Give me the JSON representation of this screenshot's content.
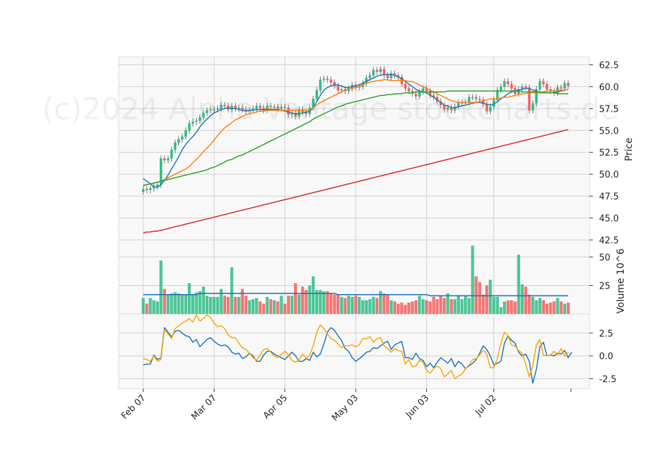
{
  "watermark": "(c)2024 Alpha Vantage stockcharts.de",
  "chart_data": {
    "type": "candlestick",
    "grid": true,
    "x_tick_labels": [
      "Feb 07",
      "Mar 07",
      "Apr 05",
      "May 03",
      "Jun 03",
      "Jul 02"
    ],
    "x_tick_index": [
      0,
      20,
      40,
      60,
      80,
      99
    ],
    "n_sessions": 121,
    "price_panel": {
      "ylabel": "Price",
      "ylim": [
        42.5,
        63.4
      ],
      "yticks": [
        42.5,
        45.0,
        47.5,
        50.0,
        52.5,
        55.0,
        57.5,
        60.0,
        62.5
      ],
      "ytick_labels": [
        "42.5",
        "45.0",
        "47.5",
        "50.0",
        "52.5",
        "55.0",
        "57.5",
        "60.0",
        "62.5"
      ],
      "close": [
        48.3,
        48.2,
        48.4,
        48.6,
        48.8,
        51.8,
        51.6,
        51.8,
        52.8,
        53.6,
        54.0,
        54.3,
        55.0,
        55.8,
        56.0,
        56.1,
        56.5,
        57.0,
        57.3,
        57.4,
        57.4,
        57.5,
        57.9,
        57.8,
        57.4,
        57.8,
        57.5,
        57.6,
        57.4,
        57.2,
        57.3,
        57.5,
        57.8,
        57.6,
        57.3,
        57.8,
        57.7,
        57.7,
        57.5,
        57.7,
        57.6,
        56.8,
        57.0,
        56.6,
        57.4,
        57.1,
        56.9,
        57.6,
        58.6,
        59.6,
        60.8,
        60.9,
        60.8,
        60.5,
        60.1,
        59.6,
        59.7,
        59.5,
        59.8,
        60.2,
        59.9,
        60.0,
        60.4,
        61.0,
        61.3,
        61.9,
        61.7,
        62.0,
        61.3,
        61.0,
        61.5,
        61.3,
        61.1,
        60.3,
        59.8,
        59.5,
        59.2,
        58.9,
        59.4,
        59.8,
        59.5,
        59.0,
        58.8,
        58.3,
        57.9,
        57.4,
        57.6,
        57.3,
        57.7,
        58.2,
        58.2,
        58.2,
        58.8,
        58.8,
        58.6,
        58.5,
        58.0,
        57.2,
        57.7,
        58.5,
        59.6,
        60.0,
        60.6,
        60.3,
        59.8,
        59.2,
        59.7,
        60.0,
        59.9,
        57.3,
        58.1,
        59.7,
        60.6,
        60.3,
        59.7,
        59.5,
        59.3,
        59.9,
        59.8,
        60.4,
        60.1
      ],
      "ma_fast": [
        49.5,
        49.2,
        48.9,
        48.6,
        48.5,
        48.8,
        49.3,
        49.9,
        50.6,
        51.3,
        52.0,
        52.8,
        53.4,
        53.9,
        54.3,
        54.8,
        55.4,
        55.9,
        56.3,
        56.7,
        57.0,
        57.2,
        57.4,
        57.5,
        57.6,
        57.5,
        57.5,
        57.4,
        57.3,
        57.2,
        57.3,
        57.3,
        57.4,
        57.4,
        57.4,
        57.4,
        57.4,
        57.4,
        57.4,
        57.3,
        57.2,
        57.1,
        57.0,
        56.9,
        56.9,
        57.0,
        57.1,
        57.2,
        57.6,
        58.3,
        59.0,
        59.6,
        59.9,
        60.1,
        60.2,
        60.2,
        60.1,
        59.9,
        59.9,
        60.0,
        60.1,
        60.2,
        60.4,
        60.6,
        60.8,
        61.0,
        61.2,
        61.3,
        61.4,
        61.4,
        61.4,
        61.3,
        61.1,
        60.9,
        60.6,
        60.3,
        60.0,
        59.7,
        59.5,
        59.4,
        59.3,
        59.0,
        58.8,
        58.5,
        58.2,
        57.9,
        57.8,
        57.6,
        57.6,
        57.7,
        57.8,
        57.9,
        58.0,
        58.1,
        58.2,
        58.2,
        58.1,
        58.0,
        57.9,
        58.0,
        58.3,
        58.6,
        58.9,
        59.2,
        59.4,
        59.5,
        59.6,
        59.7,
        59.8,
        59.8,
        59.6,
        59.5,
        59.3,
        59.3,
        59.3,
        59.3,
        59.3,
        59.4,
        59.5,
        59.6,
        59.7
      ],
      "ma_mid": [
        48.8,
        48.8,
        48.9,
        49.0,
        49.1,
        49.2,
        49.4,
        49.6,
        49.8,
        50.0,
        50.2,
        50.4,
        50.6,
        50.9,
        51.3,
        51.7,
        52.1,
        52.6,
        53.0,
        53.4,
        53.9,
        54.4,
        54.9,
        55.3,
        55.6,
        55.9,
        56.2,
        56.4,
        56.6,
        56.8,
        56.9,
        57.0,
        57.1,
        57.2,
        57.2,
        57.3,
        57.3,
        57.3,
        57.3,
        57.3,
        57.3,
        57.3,
        57.3,
        57.3,
        57.3,
        57.3,
        57.3,
        57.4,
        57.6,
        57.9,
        58.2,
        58.4,
        58.6,
        58.8,
        59.0,
        59.2,
        59.4,
        59.6,
        59.7,
        59.8,
        59.9,
        60.0,
        60.2,
        60.4,
        60.5,
        60.6,
        60.7,
        60.7,
        60.8,
        60.8,
        60.7,
        60.7,
        60.7,
        60.7,
        60.7,
        60.6,
        60.6,
        60.4,
        60.2,
        60.0,
        59.8,
        59.6,
        59.4,
        59.2,
        59.0,
        58.8,
        58.6,
        58.4,
        58.3,
        58.2,
        58.2,
        58.2,
        58.2,
        58.2,
        58.2,
        58.3,
        58.4,
        58.5,
        58.6,
        58.6,
        58.6,
        58.7,
        58.8,
        58.8,
        58.9,
        59.0,
        59.1,
        59.2,
        59.2,
        59.3,
        59.3,
        59.3,
        59.4,
        59.4,
        59.5,
        59.5,
        59.5,
        59.6,
        59.6,
        59.6,
        59.7
      ],
      "ma_slow": [
        48.7,
        48.8,
        48.9,
        49.0,
        49.1,
        49.2,
        49.3,
        49.4,
        49.5,
        49.6,
        49.7,
        49.8,
        49.9,
        50.0,
        50.1,
        50.2,
        50.3,
        50.4,
        50.5,
        50.7,
        50.8,
        51.0,
        51.2,
        51.4,
        51.6,
        51.7,
        51.9,
        52.1,
        52.2,
        52.4,
        52.6,
        52.8,
        53.0,
        53.2,
        53.4,
        53.6,
        53.8,
        54.0,
        54.2,
        54.4,
        54.6,
        54.8,
        55.0,
        55.2,
        55.4,
        55.6,
        55.8,
        56.0,
        56.3,
        56.5,
        56.7,
        56.9,
        57.1,
        57.3,
        57.5,
        57.7,
        57.8,
        58.0,
        58.1,
        58.2,
        58.3,
        58.4,
        58.5,
        58.6,
        58.7,
        58.8,
        58.9,
        59.0,
        59.0,
        59.1,
        59.1,
        59.2,
        59.2,
        59.2,
        59.3,
        59.3,
        59.3,
        59.4,
        59.4,
        59.4,
        59.4,
        59.4,
        59.4,
        59.4,
        59.4,
        59.4,
        59.5,
        59.5,
        59.5,
        59.5,
        59.5,
        59.5,
        59.5,
        59.5,
        59.5,
        59.5,
        59.5,
        59.5,
        59.5,
        59.5,
        59.5,
        59.5,
        59.5,
        59.5,
        59.5,
        59.5,
        59.5,
        59.4,
        59.4,
        59.4,
        59.4,
        59.4,
        59.3,
        59.3,
        59.3,
        59.3,
        59.3,
        59.2,
        59.2,
        59.2,
        59.2
      ],
      "ma_long": [
        43.3,
        43.4,
        43.4,
        43.5,
        43.5,
        43.6,
        43.7,
        43.8,
        43.9,
        44.0,
        44.1,
        44.2,
        44.3,
        44.4,
        44.5,
        44.6,
        44.7,
        44.8,
        44.9,
        45.0,
        45.1,
        45.2,
        45.3,
        45.4,
        45.5,
        45.6,
        45.7,
        45.8,
        45.9,
        46.0,
        46.1,
        46.2,
        46.3,
        46.4,
        46.5,
        46.6,
        46.7,
        46.8,
        46.9,
        47.0,
        47.1,
        47.2,
        47.3,
        47.4,
        47.5,
        47.6,
        47.7,
        47.8,
        47.9,
        48.0,
        48.1,
        48.2,
        48.3,
        48.4,
        48.5,
        48.6,
        48.7,
        48.8,
        48.9,
        49.0,
        49.1,
        49.2,
        49.3,
        49.4,
        49.5,
        49.6,
        49.7,
        49.8,
        49.9,
        50.0,
        50.1,
        50.2,
        50.3,
        50.4,
        50.5,
        50.6,
        50.7,
        50.8,
        50.9,
        51.0,
        51.1,
        51.2,
        51.3,
        51.4,
        51.5,
        51.6,
        51.7,
        51.8,
        51.9,
        52.0,
        52.1,
        52.2,
        52.3,
        52.4,
        52.5,
        52.6,
        52.7,
        52.8,
        52.9,
        53.0,
        53.1,
        53.2,
        53.3,
        53.4,
        53.5,
        53.6,
        53.7,
        53.8,
        53.9,
        54.0,
        54.1,
        54.2,
        54.3,
        54.4,
        54.5,
        54.6,
        54.7,
        54.8,
        54.9,
        55.0,
        55.1
      ],
      "colors": {
        "up": "#2ebd85",
        "down": "#f65e5e",
        "ma_fast": "#1f77b4",
        "ma_mid": "#ff7f0e",
        "ma_slow": "#2ca02c",
        "ma_long": "#d62728"
      }
    },
    "volume_panel": {
      "ylabel": "Volume  10^6",
      "ylim": [
        0,
        65
      ],
      "yticks": [
        25,
        50
      ],
      "ytick_labels": [
        "25",
        "50"
      ],
      "values": [
        14,
        9,
        14,
        12,
        11,
        47,
        22,
        17,
        18,
        19,
        18,
        17,
        17,
        27,
        17,
        19,
        20,
        24,
        16,
        15,
        15,
        15,
        22,
        16,
        15,
        41,
        15,
        15,
        22,
        16,
        12,
        13,
        14,
        11,
        9,
        15,
        13,
        12,
        11,
        16,
        9,
        16,
        16,
        27,
        17,
        24,
        21,
        25,
        33,
        21,
        21,
        20,
        20,
        18,
        17,
        17,
        15,
        14,
        16,
        15,
        16,
        15,
        12,
        12,
        13,
        15,
        14,
        20,
        18,
        17,
        12,
        11,
        9,
        10,
        8,
        10,
        11,
        12,
        16,
        13,
        12,
        11,
        15,
        13,
        16,
        14,
        18,
        13,
        13,
        16,
        13,
        16,
        14,
        60,
        33,
        28,
        17,
        25,
        30,
        15,
        15,
        6,
        11,
        12,
        12,
        11,
        52,
        26,
        24,
        17,
        15,
        12,
        14,
        12,
        9,
        10,
        11,
        14,
        11,
        9,
        10
      ],
      "ma": [
        17,
        17,
        17,
        17,
        17,
        17,
        17,
        17,
        17,
        17,
        17,
        17,
        17,
        17,
        17,
        17,
        18,
        18,
        18,
        18,
        18,
        18,
        18,
        18,
        18,
        18,
        18,
        18,
        18,
        18,
        18,
        18,
        18,
        18,
        18,
        18,
        18,
        18,
        18,
        18,
        18,
        18,
        18,
        18,
        18,
        18,
        18,
        18,
        18,
        18,
        18,
        18,
        18,
        18,
        18,
        17,
        17,
        17,
        17,
        17,
        17,
        17,
        17,
        17,
        17,
        17,
        17,
        17,
        17,
        17,
        17,
        17,
        17,
        17,
        17,
        17,
        17,
        17,
        17,
        17,
        17,
        16,
        16,
        16,
        16,
        16,
        16,
        16,
        16,
        16,
        16,
        16,
        16,
        16,
        16,
        16,
        16,
        16,
        16,
        16,
        16,
        16,
        16,
        16,
        16,
        16,
        16,
        16,
        16,
        16,
        16,
        16,
        16,
        16,
        16,
        16,
        16,
        16,
        16,
        16,
        16
      ],
      "colors": {
        "ma": "#1f77b4"
      }
    },
    "oscillator_panel": {
      "ylim": [
        -3.6,
        4.6
      ],
      "yticks": [
        -2.5,
        0.0,
        2.5
      ],
      "ytick_labels": [
        "-2.5",
        "0.0",
        "2.5"
      ],
      "series": [
        {
          "values": [
            -1.0,
            -0.9,
            -0.9,
            0.1,
            -0.4,
            -0.2,
            3.1,
            2.6,
            2.1,
            2.7,
            2.8,
            2.5,
            2.2,
            2.1,
            1.5,
            1.8,
            1.0,
            1.4,
            1.8,
            2.0,
            1.6,
            1.3,
            1.1,
            1.2,
            1.0,
            0.4,
            0.2,
            0.3,
            -0.3,
            -0.1,
            0.3,
            0.0,
            -0.6,
            -0.6,
            0.1,
            0.5,
            0.5,
            0.2,
            0.0,
            -0.2,
            -0.4,
            0.0,
            0.4,
            0.0,
            -0.6,
            -0.6,
            -0.3,
            -0.5,
            0.4,
            -0.1,
            0.2,
            1.3,
            2.6,
            3.1,
            2.8,
            2.2,
            1.7,
            0.8,
            0.5,
            -0.2,
            -0.6,
            -0.3,
            0.0,
            0.4,
            0.5,
            0.9,
            0.8,
            1.1,
            1.4,
            1.6,
            0.7,
            1.2,
            1.4,
            1.6,
            -0.2,
            -0.2,
            -0.4,
            0.3,
            -0.3,
            -0.5,
            -1.2,
            -0.8,
            -1.3,
            -0.7,
            -0.2,
            -0.5,
            -0.8,
            -0.3,
            -1.2,
            -0.6,
            -0.9,
            -1.4,
            -1.1,
            -0.8,
            -0.4,
            0.3,
            1.1,
            0.7,
            0.0,
            -1.0,
            -0.8,
            -0.6,
            1.4,
            2.2,
            1.7,
            1.4,
            0.4,
            0.0,
            0.2,
            -0.6,
            -3.0,
            -1.5,
            1.0,
            1.5,
            0.0,
            0.1,
            0.0,
            0.3,
            0.2,
            0.6,
            -0.2,
            0.4
          ],
          "color": "#1f77b4"
        },
        {
          "values": [
            -0.3,
            -0.4,
            -0.6,
            0.0,
            -0.6,
            -0.4,
            2.9,
            2.4,
            1.9,
            3.0,
            3.3,
            3.6,
            3.8,
            4.1,
            3.7,
            4.5,
            3.8,
            4.1,
            4.5,
            4.2,
            3.6,
            3.2,
            3.3,
            3.0,
            2.3,
            2.0,
            2.0,
            1.4,
            0.9,
            0.7,
            0.3,
            -0.2,
            -0.5,
            0.1,
            0.7,
            0.8,
            0.4,
            0.0,
            -0.2,
            0.2,
            0.5,
            0.1,
            -0.5,
            -0.7,
            -0.4,
            0.2,
            -0.3,
            0.1,
            1.1,
            2.6,
            3.4,
            3.0,
            2.4,
            1.9,
            1.7,
            1.3,
            0.9,
            1.1,
            1.1,
            1.2,
            1.0,
            1.2,
            1.9,
            1.9,
            2.1,
            1.5,
            1.9,
            2.0,
            1.1,
            0.8,
            0.4,
            0.8,
            0.6,
            0.5,
            -0.9,
            -0.4,
            -1.2,
            -1.1,
            -0.5,
            -0.7,
            -1.6,
            -1.9,
            -1.4,
            -1.1,
            -1.4,
            -2.3,
            -2.0,
            -1.6,
            -2.5,
            -2.2,
            -2.0,
            -1.4,
            -1.0,
            -0.4,
            -0.3,
            0.1,
            0.6,
            0.2,
            -1.3,
            -1.3,
            -0.3,
            1.4,
            2.6,
            2.2,
            1.2,
            1.1,
            0.6,
            0.3,
            -0.9,
            -2.3,
            -1.1,
            1.2,
            1.8,
            0.1,
            0.0,
            0.1,
            0.5,
            0.1,
            0.8,
            0.0,
            0.4
          ],
          "color": "#ffa500"
        }
      ]
    }
  }
}
